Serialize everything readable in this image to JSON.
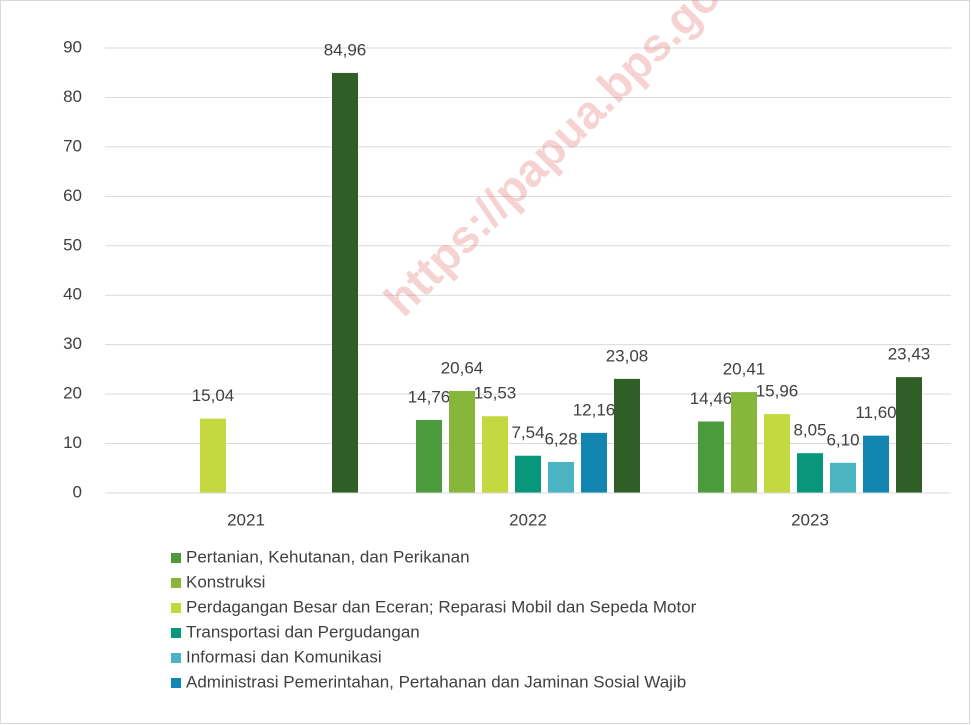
{
  "chart_data": {
    "type": "bar",
    "watermark": "https://papua.bps.go.",
    "categories": [
      "2021",
      "2022",
      "2023"
    ],
    "series": [
      {
        "name": "Pertanian, Kehutanan, dan Perikanan",
        "color": "#4b9a3c",
        "values": [
          null,
          14.76,
          14.46
        ],
        "value_labels": [
          null,
          "14,76",
          "14,46"
        ]
      },
      {
        "name": "Konstruksi",
        "color": "#86b73a",
        "values": [
          null,
          20.64,
          20.41
        ],
        "value_labels": [
          null,
          "20,64",
          "20,41"
        ]
      },
      {
        "name": "Perdagangan Besar dan Eceran; Reparasi Mobil dan Sepeda Motor",
        "color": "#c4d83f",
        "values": [
          15.04,
          15.53,
          15.96
        ],
        "value_labels": [
          "15,04",
          "15,53",
          "15,96"
        ]
      },
      {
        "name": "Transportasi dan Pergudangan",
        "color": "#08977a",
        "values": [
          null,
          7.54,
          8.05
        ],
        "value_labels": [
          null,
          "7,54",
          "8,05"
        ]
      },
      {
        "name": "Informasi dan Komunikasi",
        "color": "#4ab4c3",
        "values": [
          null,
          6.28,
          6.1
        ],
        "value_labels": [
          null,
          "6,28",
          "6,10"
        ]
      },
      {
        "name": "Administrasi Pemerintahan, Pertahanan dan Jaminan Sosial Wajib",
        "color": "#1286b0",
        "values": [
          null,
          12.16,
          11.6
        ],
        "value_labels": [
          null,
          "12,16",
          "11,60"
        ]
      },
      {
        "name": null,
        "color": "#2f5f26",
        "values": [
          84.96,
          23.08,
          23.43
        ],
        "value_labels": [
          "84,96",
          "23,08",
          "23,43"
        ]
      }
    ],
    "ylim": [
      0,
      90
    ],
    "yticks": [
      0,
      10,
      20,
      30,
      40,
      50,
      60,
      70,
      80,
      90
    ],
    "grid": true
  }
}
